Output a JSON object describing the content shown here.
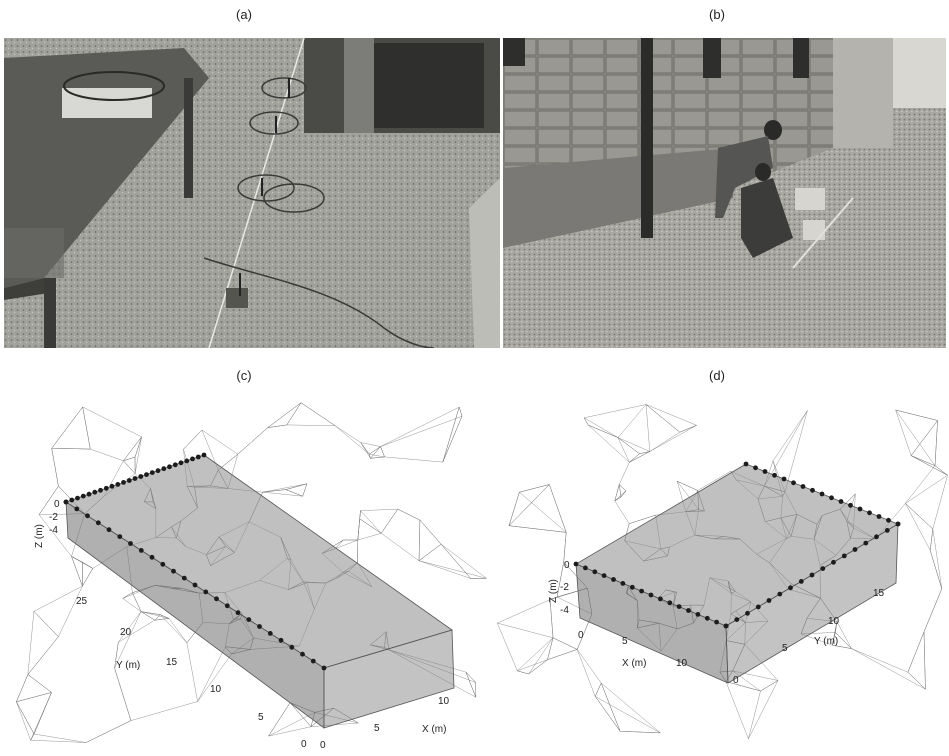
{
  "panels": {
    "a": {
      "label": "(a)"
    },
    "b": {
      "label": "(b)"
    },
    "c": {
      "label": "(c)",
      "z_axis": {
        "title": "Z (m)",
        "ticks": [
          "0",
          "-2",
          "-4"
        ]
      },
      "y_axis": {
        "title": "Y (m)",
        "ticks": [
          "25",
          "20",
          "15",
          "10",
          "5",
          "0"
        ]
      },
      "x_axis": {
        "title": "X (m)",
        "ticks": [
          "0",
          "5",
          "10"
        ]
      }
    },
    "d": {
      "label": "(d)",
      "z_axis": {
        "title": "Z (m)",
        "ticks": [
          "0",
          "-2",
          "-4"
        ]
      },
      "x_axis": {
        "title": "X (m)",
        "ticks": [
          "0",
          "5",
          "10"
        ]
      },
      "y_axis": {
        "title": "Y (m)",
        "ticks": [
          "15",
          "10",
          "5",
          "0"
        ]
      }
    }
  },
  "colors": {
    "photo_a_floor": "#9d9d98",
    "photo_a_table": "#5b5b58",
    "photo_b_wall": "#8c8a84",
    "photo_b_ground": "#a7a59f",
    "mesh_line": "#666666",
    "electrode": "#1c1c1c"
  }
}
